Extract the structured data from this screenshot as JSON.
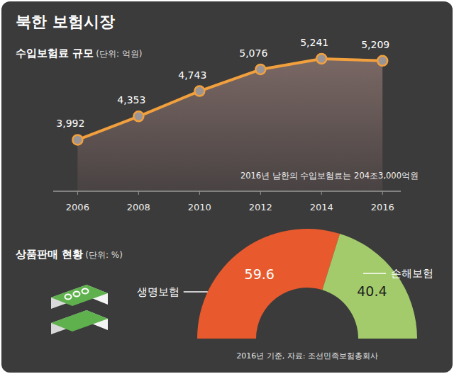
{
  "title": "북한 보험시장",
  "chart_data": [
    {
      "type": "line",
      "title": "수입보험료 규모",
      "unit_label": "(단위: 억원)",
      "x": [
        2006,
        2008,
        2010,
        2012,
        2014,
        2016
      ],
      "values": [
        3992,
        4353,
        4743,
        5076,
        5241,
        5209
      ],
      "value_labels": [
        "3,992",
        "4,353",
        "4,743",
        "5,076",
        "5,241",
        "5,209"
      ],
      "color": "#f2a03d",
      "marker": "circle",
      "data_labels": true,
      "xlim": [
        2005.2,
        2016.6
      ],
      "xticks": [
        2006,
        2008,
        2010,
        2012,
        2014,
        2016
      ],
      "ylim": [
        3200,
        5600
      ],
      "tick_labels": "x",
      "grid": false,
      "annotation": "2016년 남한의 수입보험료는 204조3,000억원"
    },
    {
      "type": "pie",
      "title": "상품판매 현황",
      "unit_label": "(단위: %)",
      "categories": [
        "생명보험",
        "손해보험"
      ],
      "values": [
        59.6,
        40.4
      ],
      "colors": [
        "#e85a2e",
        "#a3cb6b"
      ],
      "data_labels": true,
      "note": "2016년 기준, 자료: 조선민족보험총회사"
    }
  ]
}
